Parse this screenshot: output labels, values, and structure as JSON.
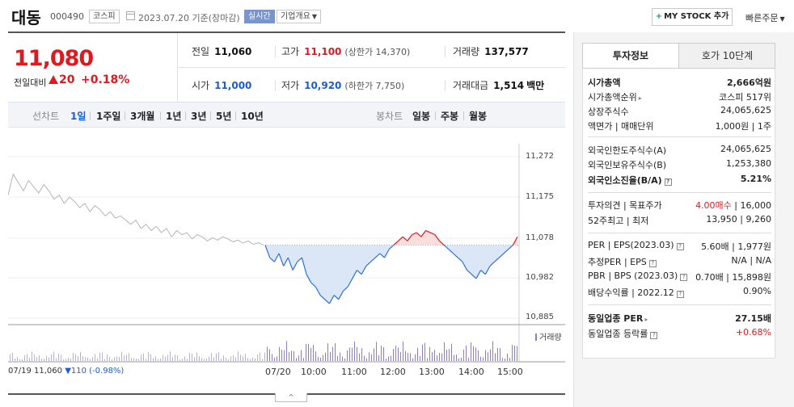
{
  "header": {
    "company_name": "대동",
    "code": "000490",
    "market_tag": "코스피",
    "date_text": "2023.07.20 기준(장마감)",
    "live_tag": "실시간",
    "info_dropdown": "기업개요",
    "mystock_button": "MY STOCK 추가",
    "quick_order": "빠른주문"
  },
  "price": {
    "current": "11,080",
    "change_label": "전일대비",
    "change_value": "20",
    "change_pct": "+0.18%",
    "prev_close_label": "전일",
    "prev_close": "11,060",
    "high_label": "고가",
    "high": "11,100",
    "upper_limit_text": "(상한가 14,370)",
    "volume_label": "거래량",
    "volume": "137,577",
    "open_label": "시가",
    "open": "11,000",
    "low_label": "저가",
    "low": "10,920",
    "lower_limit_text": "(하한가 7,750)",
    "amount_label": "거래대금",
    "amount": "1,514",
    "amount_unit": "백만"
  },
  "period_toolbar": {
    "line_label": "선차트",
    "periods": [
      "1일",
      "1주일",
      "3개월",
      "1년",
      "3년",
      "5년",
      "10년"
    ],
    "active_period": "1일",
    "candle_label": "봉차트",
    "candles": [
      "일봉",
      "주봉",
      "월봉"
    ]
  },
  "chart_data": {
    "type": "line",
    "y_ticks": [
      "11,272",
      "11,175",
      "11,078",
      "10,982",
      "10,885"
    ],
    "ylim": [
      10885,
      11272
    ],
    "x_ticks": [
      "07/20",
      "10:00",
      "11:00",
      "12:00",
      "13:00",
      "14:00",
      "15:00"
    ],
    "prev_day_label": "07/19",
    "prev_day_close": "11,060",
    "prev_day_change": "▼110 (-0.98%)",
    "reference_price": 11060,
    "prev_day_series": [
      11180,
      11230,
      11210,
      11190,
      11215,
      11200,
      11185,
      11205,
      11190,
      11170,
      11180,
      11160,
      11175,
      11165,
      11150,
      11160,
      11140,
      11155,
      11145,
      11130,
      11140,
      11125,
      11130,
      11120,
      11110,
      11120,
      11100,
      11110,
      11095,
      11105,
      11090,
      11100,
      11080,
      11095,
      11085,
      11090,
      11075,
      11085,
      11080,
      11070,
      11078,
      11072,
      11080,
      11075,
      11068,
      11072,
      11065,
      11070,
      11062,
      11066,
      11060
    ],
    "today_series": [
      11060,
      11030,
      11020,
      11040,
      11010,
      11030,
      11000,
      11020,
      11030,
      10990,
      10970,
      10960,
      10940,
      10930,
      10920,
      10940,
      10930,
      10950,
      10960,
      10980,
      11000,
      10990,
      11010,
      11020,
      11030,
      11040,
      11030,
      11050,
      11060,
      11070,
      11080,
      11070,
      11085,
      11090,
      11080,
      11095,
      11090,
      11085,
      11070,
      11060,
      11050,
      11040,
      11030,
      11020,
      11000,
      10990,
      10980,
      11000,
      10990,
      11010,
      11020,
      11030,
      11040,
      11050,
      11060,
      11080
    ],
    "volume_legend": "거래량"
  },
  "toggle_icon": "^",
  "right_panel": {
    "tab_active": "투자정보",
    "tab_other": "호가 10단계",
    "rows": [
      {
        "k": "시가총액",
        "v": "2,666억원",
        "bold": true
      },
      {
        "k": "시가총액순위",
        "v": "코스피 517위",
        "arrow": true
      },
      {
        "k": "상장주식수",
        "v": "24,065,625"
      },
      {
        "k": "액면가 | 매매단위",
        "v": "1,000원 | 1주"
      },
      {
        "k": "외국인한도주식수(A)",
        "v": "24,065,625"
      },
      {
        "k": "외국인보유주식수(B)",
        "v": "1,253,380"
      },
      {
        "k": "외국인소진율(B/A)",
        "v": "5.21%",
        "bold": true,
        "q": true
      },
      {
        "k": "투자의견 | 목표주가",
        "v_red": "4.00매수",
        "v": " | 16,000"
      },
      {
        "k": "52주최고 | 최저",
        "v": "13,950 | 9,260"
      },
      {
        "k": "PER | EPS(2023.03)",
        "v": "5.60배 | 1,977원",
        "q": true
      },
      {
        "k": "추정PER | EPS",
        "v": "N/A | N/A",
        "q": true
      },
      {
        "k": "PBR | BPS (2023.03)",
        "v": "0.70배 | 15,898원",
        "q": true
      },
      {
        "k": "배당수익률 | 2022.12",
        "v": "0.90%",
        "q": true
      },
      {
        "k": "동일업종 PER",
        "v": "27.15배",
        "bold": true,
        "arrow": true
      },
      {
        "k": "동일업종 등락률",
        "v": "+0.68%",
        "red": true,
        "q": true
      }
    ]
  }
}
